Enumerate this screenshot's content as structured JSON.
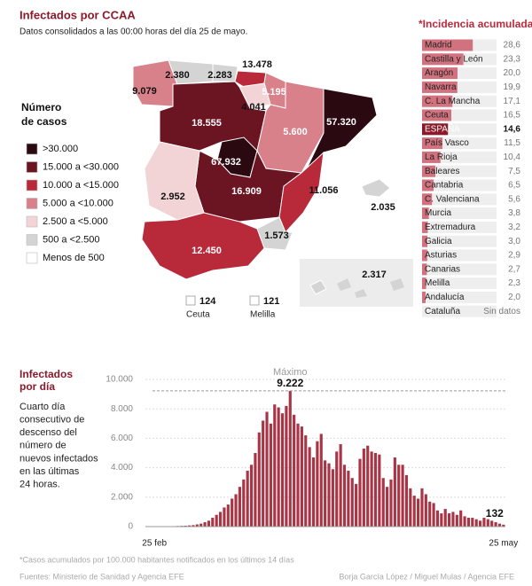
{
  "header": {
    "title": "Infectados por CCAA",
    "subtitle": "Datos consolidados a las 00:00 horas del día 25 de mayo."
  },
  "map": {
    "legend": {
      "title": [
        "Número",
        "de casos"
      ],
      "items": [
        {
          "label": ">30.000",
          "color": "#2a0a10"
        },
        {
          "label": "15.000 a <30.000",
          "color": "#6b1422"
        },
        {
          "label": "10.000 a <15.000",
          "color": "#b8293a"
        },
        {
          "label": "5.000 a <10.000",
          "color": "#d9818b"
        },
        {
          "label": "2.500 a <5.000",
          "color": "#f2d4d6"
        },
        {
          "label": "500 a <2.500",
          "color": "#d4d4d4"
        },
        {
          "label": "Menos de 500",
          "color": "#ffffff"
        }
      ]
    },
    "regions": [
      {
        "value": 9079,
        "label": "9.079",
        "color": "#d9818b"
      },
      {
        "value": 2380,
        "label": "2.380",
        "color": "#d4d4d4"
      },
      {
        "value": 2283,
        "label": "2.283",
        "color": "#d4d4d4"
      },
      {
        "value": 13478,
        "label": "13.478",
        "color": "#b8293a"
      },
      {
        "value": 5195,
        "label": "5.195",
        "color": "#d9818b"
      },
      {
        "value": 4041,
        "label": "4.041",
        "color": "#f2d4d6"
      },
      {
        "value": 18555,
        "label": "18.555",
        "color": "#6b1422"
      },
      {
        "value": 5600,
        "label": "5.600",
        "color": "#d9818b"
      },
      {
        "value": 57320,
        "label": "57.320",
        "color": "#2a0a10"
      },
      {
        "value": 67932,
        "label": "67.932",
        "color": "#2a0a10"
      },
      {
        "value": 16909,
        "label": "16.909",
        "color": "#6b1422"
      },
      {
        "value": 2952,
        "label": "2.952",
        "color": "#f2d4d6"
      },
      {
        "value": 11056,
        "label": "11.056",
        "color": "#b8293a"
      },
      {
        "value": 2035,
        "label": "2.035",
        "color": "#d4d4d4"
      },
      {
        "value": 1573,
        "label": "1.573",
        "color": "#d4d4d4"
      },
      {
        "value": 12450,
        "label": "12.450",
        "color": "#b8293a"
      },
      {
        "value": 2317,
        "label": "2.317",
        "color": "#d4d4d4"
      }
    ],
    "ceuta": {
      "name": "Ceuta",
      "value": 124,
      "color": "#ffffff"
    },
    "melilla": {
      "name": "Melilla",
      "value": 121,
      "color": "#ffffff"
    }
  },
  "chart_data": [
    {
      "type": "hbar",
      "title": "*Incidencia acumulada",
      "categories": [
        "Madrid",
        "Castilla y León",
        "Aragón",
        "Navarra",
        "C. La Mancha",
        "Ceuta",
        "ESPAÑA",
        "País Vasco",
        "La Rioja",
        "Baleares",
        "Cantabria",
        "C. Valenciana",
        "Murcia",
        "Extremadura",
        "Galicia",
        "Asturias",
        "Canarias",
        "Melilla",
        "Andalucía",
        "Cataluña"
      ],
      "values": [
        28.6,
        23.3,
        20.0,
        19.9,
        17.1,
        16.5,
        14.6,
        11.5,
        10.4,
        7.5,
        6.5,
        5.6,
        3.8,
        3.2,
        3.0,
        2.9,
        2.7,
        2.3,
        2.0,
        null
      ],
      "value_labels": [
        "28,6",
        "23,3",
        "20,0",
        "19,9",
        "17,1",
        "16,5",
        "14,6",
        "11,5",
        "10,4",
        "7,5",
        "6,5",
        "5,6",
        "3,8",
        "3,2",
        "3,0",
        "2,9",
        "2,7",
        "2,3",
        "2,0",
        "Sin datos"
      ],
      "colors": [
        "#d3727f",
        "#d3727f",
        "#d3727f",
        "#d3727f",
        "#d3727f",
        "#d3727f",
        "#8b1a2b",
        "#d3727f",
        "#d3727f",
        "#d3727f",
        "#d3727f",
        "#d3727f",
        "#d3727f",
        "#d3727f",
        "#d3727f",
        "#d3727f",
        "#d3727f",
        "#d3727f",
        "#d3727f",
        "#d3727f"
      ],
      "footnote": "*Casos acumulados por 100.000 habitantes notificados en los últimos 14 días"
    },
    {
      "type": "bar",
      "title": [
        "Infectados",
        "por día"
      ],
      "description": [
        "Cuarto día",
        "consecutivo de",
        "descenso del",
        "número de",
        "nuevos infectados",
        "en las últimas",
        "24 horas."
      ],
      "annotation": "Máximo",
      "color": "#a83545",
      "categories": [
        "25 feb",
        null,
        null,
        null,
        null,
        null,
        null,
        null,
        null,
        null,
        null,
        null,
        null,
        null,
        null,
        null,
        null,
        null,
        null,
        null,
        null,
        null,
        null,
        null,
        null,
        null,
        null,
        null,
        null,
        null,
        null,
        null,
        null,
        null,
        null,
        null,
        null,
        null,
        null,
        null,
        null,
        null,
        null,
        null,
        null,
        null,
        null,
        null,
        null,
        null,
        null,
        null,
        null,
        null,
        null,
        null,
        null,
        null,
        null,
        null,
        null,
        null,
        null,
        null,
        null,
        null,
        null,
        null,
        null,
        null,
        null,
        null,
        null,
        null,
        null,
        null,
        null,
        null,
        null,
        null,
        null,
        null,
        null,
        null,
        null,
        null,
        null,
        null,
        null,
        null,
        "25 may"
      ],
      "values": [
        2,
        5,
        8,
        10,
        20,
        30,
        40,
        50,
        60,
        80,
        100,
        150,
        200,
        300,
        400,
        600,
        800,
        1000,
        1300,
        1500,
        1900,
        2200,
        2700,
        3200,
        3800,
        4200,
        5000,
        6400,
        7200,
        7800,
        7000,
        8300,
        8100,
        7700,
        8200,
        9222,
        7600,
        7000,
        6800,
        6200,
        5400,
        4700,
        5800,
        6300,
        4500,
        4300,
        3900,
        5100,
        5600,
        4200,
        3800,
        3300,
        2900,
        4600,
        5300,
        5500,
        5100,
        5000,
        4900,
        3300,
        2700,
        3200,
        4700,
        4200,
        4200,
        3500,
        2600,
        2100,
        1900,
        2600,
        2200,
        1700,
        1600,
        1100,
        900,
        1200,
        900,
        1000,
        800,
        1100,
        700,
        600,
        600,
        500,
        400,
        600,
        500,
        400,
        300,
        200,
        132
      ],
      "value_labels": [
        null,
        null,
        null,
        null,
        null,
        null,
        null,
        null,
        null,
        null,
        null,
        null,
        null,
        null,
        null,
        null,
        null,
        null,
        null,
        null,
        null,
        null,
        null,
        null,
        null,
        null,
        null,
        null,
        null,
        null,
        null,
        null,
        null,
        null,
        null,
        "9.222",
        null,
        null,
        null,
        null,
        null,
        null,
        null,
        null,
        null,
        null,
        null,
        null,
        null,
        null,
        null,
        null,
        null,
        null,
        null,
        null,
        null,
        null,
        null,
        null,
        null,
        null,
        null,
        null,
        null,
        null,
        null,
        null,
        null,
        null,
        null,
        null,
        null,
        null,
        null,
        null,
        null,
        null,
        null,
        null,
        null,
        null,
        null,
        null,
        null,
        null,
        null,
        null,
        null,
        null,
        "132"
      ],
      "ylim": [
        0,
        10000
      ],
      "yticks": [
        0,
        {
          "value": 2000,
          "label": "2.000"
        },
        {
          "value": 4000,
          "label": "4.000"
        },
        {
          "value": 6000,
          "label": "6.000"
        },
        {
          "value": 8000,
          "label": "8.000"
        },
        {
          "value": 10000,
          "label": "10.000"
        }
      ],
      "grid": true
    }
  ],
  "footer": {
    "sources": "Fuentes: Ministerio de Sanidad y Agencia EFE",
    "credits": "Borja García López / Miguel Mulas / Agencia EFE"
  }
}
